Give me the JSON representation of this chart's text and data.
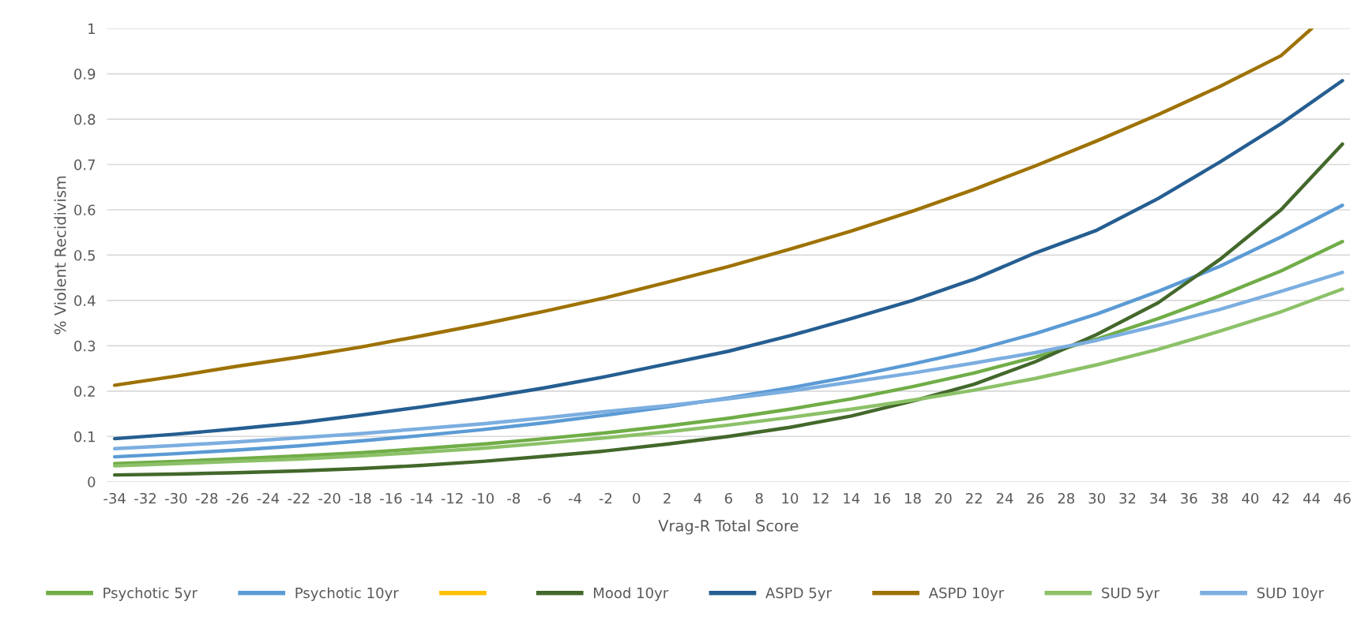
{
  "chart_data": {
    "type": "line",
    "xlabel": "Vrag-R Total Score",
    "ylabel": "% Violent Recidivism",
    "x": [
      -34,
      -30,
      -26,
      -22,
      -18,
      -14,
      -10,
      -6,
      -2,
      2,
      6,
      10,
      14,
      18,
      22,
      26,
      30,
      34,
      38,
      42,
      46
    ],
    "series": [
      {
        "name": "Psychotic 5yr",
        "color": "#70ad47",
        "values": [
          0.04,
          0.045,
          0.051,
          0.057,
          0.064,
          0.073,
          0.083,
          0.095,
          0.108,
          0.123,
          0.14,
          0.16,
          0.183,
          0.21,
          0.24,
          0.275,
          0.315,
          0.36,
          0.41,
          0.465,
          0.53
        ]
      },
      {
        "name": "Psychotic 10yr",
        "color": "#5b9bd5",
        "values": [
          0.055,
          0.062,
          0.07,
          0.079,
          0.09,
          0.102,
          0.115,
          0.13,
          0.147,
          0.165,
          0.185,
          0.207,
          0.232,
          0.26,
          0.29,
          0.327,
          0.37,
          0.42,
          0.475,
          0.54,
          0.61
        ]
      },
      {
        "color": "#ffc000",
        "values": [
          null,
          null,
          null,
          null,
          null,
          null,
          null,
          null,
          null,
          null,
          null,
          null,
          null,
          null,
          null,
          null,
          null,
          null,
          null,
          null,
          null
        ]
      },
      {
        "name": "Mood 10yr",
        "color": "#43682b",
        "values": [
          0.015,
          0.017,
          0.02,
          0.024,
          0.029,
          0.036,
          0.045,
          0.056,
          0.068,
          0.083,
          0.1,
          0.12,
          0.145,
          0.178,
          0.215,
          0.265,
          0.325,
          0.395,
          0.49,
          0.6,
          0.745
        ]
      },
      {
        "name": "ASPD 5yr",
        "color": "#255e91",
        "values": [
          0.095,
          0.105,
          0.117,
          0.13,
          0.147,
          0.165,
          0.185,
          0.207,
          0.232,
          0.26,
          0.288,
          0.322,
          0.36,
          0.4,
          0.447,
          0.505,
          0.555,
          0.625,
          0.705,
          0.79,
          0.885
        ]
      },
      {
        "name": "ASPD 10yr",
        "color": "#9e7203",
        "x": [
          -34,
          -30,
          -26,
          -22,
          -18,
          -14,
          -10,
          -6,
          -2,
          2,
          6,
          10,
          14,
          18,
          22,
          26,
          30,
          34,
          38,
          42,
          44
        ],
        "values": [
          0.213,
          0.233,
          0.255,
          0.275,
          0.297,
          0.322,
          0.348,
          0.376,
          0.406,
          0.44,
          0.475,
          0.513,
          0.553,
          0.597,
          0.645,
          0.697,
          0.752,
          0.81,
          0.872,
          0.94,
          1.0
        ]
      },
      {
        "name": "SUD 5yr",
        "color": "#8cc168",
        "values": [
          0.035,
          0.04,
          0.045,
          0.05,
          0.057,
          0.065,
          0.074,
          0.085,
          0.097,
          0.11,
          0.125,
          0.142,
          0.16,
          0.18,
          0.202,
          0.228,
          0.258,
          0.292,
          0.332,
          0.375,
          0.425
        ]
      },
      {
        "name": "SUD 10yr",
        "color": "#7caee0",
        "values": [
          0.073,
          0.08,
          0.088,
          0.097,
          0.106,
          0.117,
          0.128,
          0.141,
          0.155,
          0.168,
          0.183,
          0.2,
          0.22,
          0.24,
          0.262,
          0.285,
          0.312,
          0.345,
          0.38,
          0.42,
          0.462
        ]
      }
    ],
    "xlim": [
      -34.5,
      46.5
    ],
    "xticks": [
      -34,
      -32,
      -30,
      -28,
      -26,
      -24,
      -22,
      -20,
      -18,
      -16,
      -14,
      -12,
      -10,
      -8,
      -6,
      -4,
      -2,
      0,
      2,
      4,
      6,
      8,
      10,
      12,
      14,
      16,
      18,
      20,
      22,
      24,
      26,
      28,
      30,
      32,
      34,
      36,
      38,
      40,
      42,
      44,
      46
    ],
    "ylim": [
      0,
      1
    ],
    "yticks": [
      0,
      0.1,
      0.2,
      0.3,
      0.4,
      0.5,
      0.6,
      0.7,
      0.8,
      0.9,
      1
    ],
    "grid": "y",
    "legend": "bottom",
    "marker": "none",
    "line_style": "solid"
  }
}
